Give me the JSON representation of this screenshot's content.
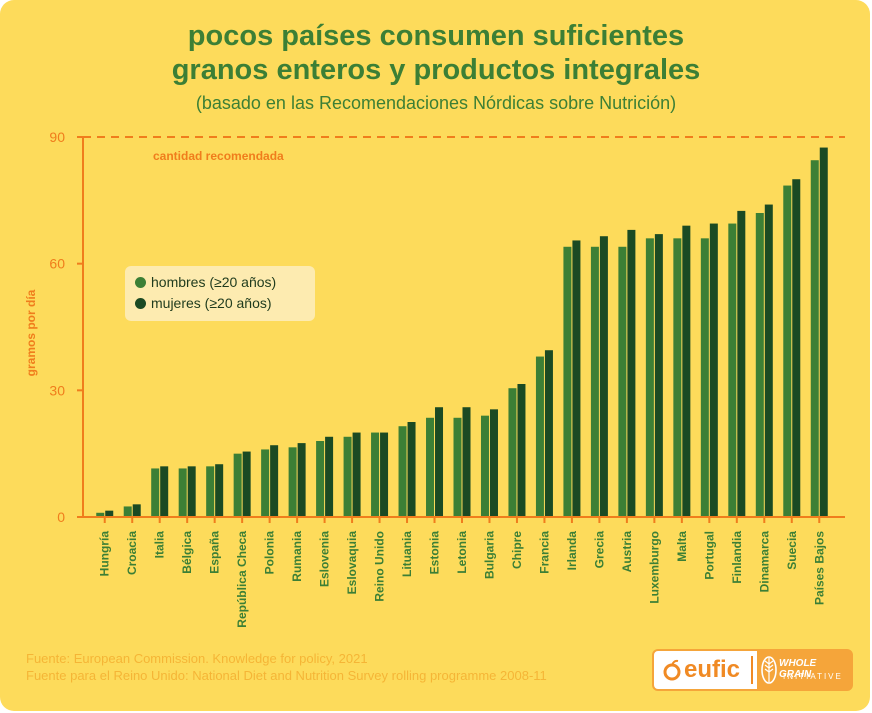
{
  "title_line1": "pocos países consumen suficientes",
  "title_line2": "granos enteros y productos integrales",
  "subtitle": "(basado en las Recomendaciones Nórdicas sobre Nutrición)",
  "colors": {
    "background": "#fddb5b",
    "men": "#3c7f35",
    "women": "#1b4a23",
    "axis": "#f07d1c",
    "title": "#3c7f35"
  },
  "legend": {
    "men": "hombres (≥20 años)",
    "women": "mujeres (≥20 años)"
  },
  "source_line1": "Fuente: European Commission. Knowledge for policy, 2021",
  "source_line2": "Fuente para el Reino Unido: National Diet and Nutrition Survey rolling programme 2008-11",
  "logos": {
    "eufic": "eufic",
    "wholegrain_line1": "WHOLE GRAIN",
    "wholegrain_line2": "INITIATIVE"
  },
  "chart_data": {
    "type": "bar",
    "ylabel": "gramos por día",
    "ylim": [
      0,
      90
    ],
    "yticks": [
      0,
      30,
      60,
      90
    ],
    "reference_line": {
      "value": 90,
      "label": "cantidad recomendada"
    },
    "legend_position": "upper-left",
    "categories": [
      "Hungría",
      "Croacia",
      "Italia",
      "Bélgica",
      "España",
      "República Checa",
      "Polonia",
      "Rumania",
      "Eslovenia",
      "Eslovaquia",
      "Reino Unido",
      "Lituania",
      "Estonia",
      "Letonia",
      "Bulgaria",
      "Chipre",
      "Francia",
      "Irlanda",
      "Grecia",
      "Austria",
      "Luxemburgo",
      "Malta",
      "Portugal",
      "Finlandia",
      "Dinamarca",
      "Suecia",
      "Países Bajos"
    ],
    "series": [
      {
        "name": "hombres (≥20 años)",
        "values": [
          1,
          2.5,
          11.5,
          11.5,
          12,
          15,
          16,
          16.5,
          18,
          19,
          20,
          21.5,
          23.5,
          23.5,
          24,
          30.5,
          38,
          64,
          64,
          64,
          66,
          66,
          66,
          69.5,
          72,
          78.5,
          84.5
        ]
      },
      {
        "name": "mujeres (≥20 años)",
        "values": [
          1.5,
          3,
          12,
          12,
          12.5,
          15.5,
          17,
          17.5,
          19,
          20,
          20,
          22.5,
          26,
          26,
          25.5,
          31.5,
          39.5,
          65.5,
          66.5,
          68,
          67,
          69,
          69.5,
          72.5,
          74,
          80,
          87.5
        ]
      }
    ]
  }
}
